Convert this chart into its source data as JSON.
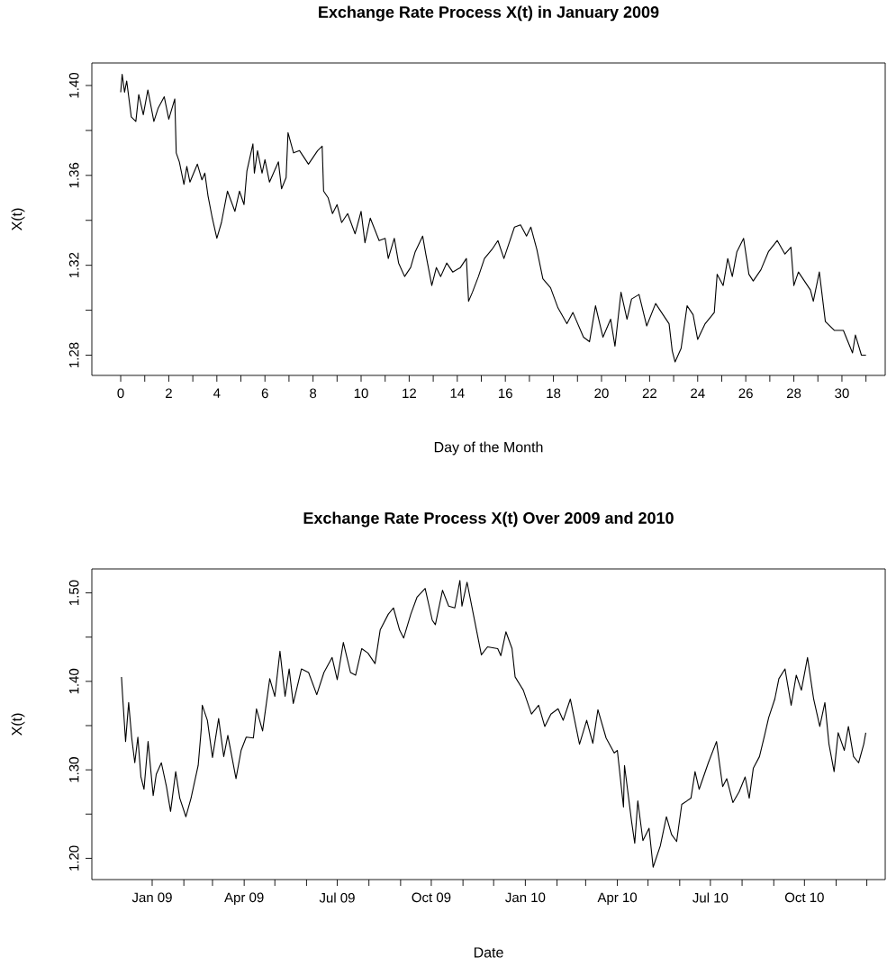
{
  "chart_data": [
    {
      "type": "line",
      "title": "Exchange Rate Process X(t) in January 2009",
      "xlabel": "Day of the Month",
      "ylabel": "X(t)",
      "color": "#000000",
      "x": [
        0,
        0.06,
        0.16,
        0.25,
        0.44,
        0.63,
        0.75,
        0.94,
        1.13,
        1.38,
        1.56,
        1.81,
        2.0,
        2.25,
        2.31,
        2.44,
        2.63,
        2.75,
        2.88,
        3.19,
        3.38,
        3.5,
        3.63,
        3.81,
        4.0,
        4.19,
        4.44,
        4.75,
        4.94,
        5.13,
        5.25,
        5.5,
        5.56,
        5.69,
        5.88,
        6.0,
        6.19,
        6.56,
        6.69,
        6.88,
        6.96,
        7.19,
        7.44,
        7.81,
        8.19,
        8.38,
        8.44,
        8.63,
        8.81,
        9.0,
        9.19,
        9.44,
        9.75,
        10.0,
        10.16,
        10.38,
        10.75,
        11.0,
        11.13,
        11.38,
        11.56,
        11.81,
        12.06,
        12.25,
        12.56,
        12.69,
        12.94,
        13.13,
        13.31,
        13.56,
        13.81,
        14.13,
        14.38,
        14.47,
        14.63,
        14.88,
        15.13,
        15.44,
        15.69,
        15.94,
        16.38,
        16.63,
        16.88,
        17.06,
        17.31,
        17.56,
        17.88,
        18.19,
        18.56,
        18.81,
        19.25,
        19.5,
        19.75,
        20.06,
        20.38,
        20.56,
        20.81,
        21.06,
        21.25,
        21.56,
        21.88,
        22.25,
        22.56,
        22.81,
        22.94,
        23.06,
        23.31,
        23.56,
        23.81,
        24.0,
        24.31,
        24.69,
        24.81,
        25.06,
        25.25,
        25.44,
        25.63,
        25.91,
        26.13,
        26.31,
        26.63,
        26.94,
        27.31,
        27.63,
        27.88,
        28.0,
        28.19,
        28.69,
        28.81,
        29.06,
        29.31,
        29.69,
        30.06,
        30.44,
        30.56,
        30.81,
        31.0
      ],
      "values": [
        1.397,
        1.405,
        1.397,
        1.402,
        1.386,
        1.384,
        1.396,
        1.387,
        1.398,
        1.384,
        1.39,
        1.395,
        1.385,
        1.394,
        1.37,
        1.366,
        1.356,
        1.364,
        1.357,
        1.365,
        1.358,
        1.361,
        1.351,
        1.341,
        1.332,
        1.339,
        1.353,
        1.344,
        1.353,
        1.347,
        1.362,
        1.374,
        1.361,
        1.371,
        1.361,
        1.367,
        1.357,
        1.366,
        1.354,
        1.359,
        1.379,
        1.37,
        1.371,
        1.365,
        1.371,
        1.373,
        1.353,
        1.35,
        1.343,
        1.347,
        1.339,
        1.343,
        1.334,
        1.344,
        1.33,
        1.341,
        1.331,
        1.332,
        1.323,
        1.332,
        1.321,
        1.315,
        1.319,
        1.326,
        1.333,
        1.325,
        1.311,
        1.319,
        1.315,
        1.321,
        1.317,
        1.319,
        1.323,
        1.304,
        1.308,
        1.315,
        1.323,
        1.327,
        1.331,
        1.323,
        1.337,
        1.338,
        1.333,
        1.337,
        1.327,
        1.314,
        1.31,
        1.301,
        1.294,
        1.299,
        1.288,
        1.286,
        1.302,
        1.288,
        1.296,
        1.284,
        1.308,
        1.296,
        1.305,
        1.307,
        1.293,
        1.303,
        1.298,
        1.294,
        1.282,
        1.277,
        1.283,
        1.302,
        1.298,
        1.287,
        1.294,
        1.299,
        1.316,
        1.311,
        1.323,
        1.315,
        1.326,
        1.332,
        1.316,
        1.313,
        1.318,
        1.326,
        1.331,
        1.325,
        1.328,
        1.311,
        1.317,
        1.309,
        1.304,
        1.317,
        1.295,
        1.291,
        1.291,
        1.281,
        1.289,
        1.28,
        1.28
      ],
      "xlim": [
        -1.2,
        31.8
      ],
      "ylim": [
        1.271,
        1.41
      ],
      "xticks": [
        0,
        {
          "value": 1,
          "label": null
        },
        2,
        {
          "value": 3,
          "label": null
        },
        4,
        {
          "value": 5,
          "label": null
        },
        6,
        {
          "value": 7,
          "label": null
        },
        8,
        {
          "value": 9,
          "label": null
        },
        10,
        {
          "value": 11,
          "label": null
        },
        12,
        {
          "value": 13,
          "label": null
        },
        14,
        {
          "value": 15,
          "label": null
        },
        16,
        {
          "value": 17,
          "label": null
        },
        18,
        {
          "value": 19,
          "label": null
        },
        20,
        {
          "value": 21,
          "label": null
        },
        22,
        {
          "value": 23,
          "label": null
        },
        24,
        {
          "value": 25,
          "label": null
        },
        26,
        {
          "value": 27,
          "label": null
        },
        28,
        {
          "value": 29,
          "label": null
        },
        30,
        {
          "value": 31,
          "label": null
        }
      ],
      "yticks": [
        1.28,
        {
          "value": 1.3,
          "label": null
        },
        1.32,
        {
          "value": 1.34,
          "label": null
        },
        1.36,
        {
          "value": 1.38,
          "label": null
        },
        {
          "value": 1.4,
          "label": "1.40"
        }
      ]
    },
    {
      "type": "line",
      "title": "Exchange Rate Process X(t) Over 2009 and 2010",
      "xlabel": "Date",
      "ylabel": "X(t)",
      "color": "#000000",
      "x": [
        "2008-12-02",
        "2008-12-03",
        "2008-12-06",
        "2008-12-09",
        "2008-12-12",
        "2008-12-15",
        "2008-12-18",
        "2008-12-21",
        "2008-12-24",
        "2008-12-28",
        "2009-01-02",
        "2009-01-05",
        "2009-01-10",
        "2009-01-15",
        "2009-01-19",
        "2009-01-24",
        "2009-01-28",
        "2009-02-03",
        "2009-02-08",
        "2009-02-15",
        "2009-02-18",
        "2009-02-19",
        "2009-02-24",
        "2009-03-01",
        "2009-03-07",
        "2009-03-12",
        "2009-03-16",
        "2009-03-24",
        "2009-03-29",
        "2009-04-03",
        "2009-04-10",
        "2009-04-13",
        "2009-04-19",
        "2009-04-26",
        "2009-05-01",
        "2009-05-06",
        "2009-05-11",
        "2009-05-15",
        "2009-05-19",
        "2009-05-27",
        "2009-06-03",
        "2009-06-11",
        "2009-06-18",
        "2009-06-26",
        "2009-07-01",
        "2009-07-07",
        "2009-07-14",
        "2009-07-19",
        "2009-07-25",
        "2009-07-31",
        "2009-08-07",
        "2009-08-12",
        "2009-08-20",
        "2009-08-25",
        "2009-08-31",
        "2009-09-04",
        "2009-09-11",
        "2009-09-17",
        "2009-09-25",
        "2009-10-02",
        "2009-10-05",
        "2009-10-12",
        "2009-10-18",
        "2009-10-24",
        "2009-10-29",
        "2009-10-31",
        "2009-11-05",
        "2009-11-12",
        "2009-11-19",
        "2009-11-25",
        "2009-12-05",
        "2009-12-08",
        "2009-12-13",
        "2009-12-19",
        "2009-12-22",
        "2009-12-30",
        "2010-01-07",
        "2010-01-14",
        "2010-01-20",
        "2010-01-26",
        "2010-02-02",
        "2010-02-07",
        "2010-02-14",
        "2010-02-23",
        "2010-03-02",
        "2010-03-08",
        "2010-03-13",
        "2010-03-21",
        "2010-03-29",
        "2010-04-01",
        "2010-04-07",
        "2010-04-08",
        "2010-04-15",
        "2010-04-18",
        "2010-04-21",
        "2010-04-26",
        "2010-05-02",
        "2010-05-06",
        "2010-05-13",
        "2010-05-19",
        "2010-05-24",
        "2010-05-29",
        "2010-06-03",
        "2010-06-12",
        "2010-06-16",
        "2010-06-20",
        "2010-06-29",
        "2010-07-07",
        "2010-07-13",
        "2010-07-17",
        "2010-07-23",
        "2010-07-29",
        "2010-08-04",
        "2010-08-08",
        "2010-08-12",
        "2010-08-18",
        "2010-08-23",
        "2010-08-27",
        "2010-09-02",
        "2010-09-06",
        "2010-09-12",
        "2010-09-18",
        "2010-09-23",
        "2010-09-28",
        "2010-10-04",
        "2010-10-10",
        "2010-10-16",
        "2010-10-21",
        "2010-10-25",
        "2010-10-30",
        "2010-11-03",
        "2010-11-09",
        "2010-11-13",
        "2010-11-18",
        "2010-11-23",
        "2010-11-28",
        "2010-11-30"
      ],
      "values": [
        1.405,
        1.385,
        1.332,
        1.376,
        1.336,
        1.308,
        1.337,
        1.292,
        1.278,
        1.332,
        1.271,
        1.295,
        1.308,
        1.281,
        1.253,
        1.298,
        1.268,
        1.247,
        1.268,
        1.305,
        1.346,
        1.373,
        1.356,
        1.314,
        1.358,
        1.315,
        1.339,
        1.29,
        1.322,
        1.337,
        1.336,
        1.369,
        1.344,
        1.403,
        1.383,
        1.434,
        1.383,
        1.414,
        1.375,
        1.414,
        1.41,
        1.385,
        1.41,
        1.427,
        1.402,
        1.444,
        1.41,
        1.407,
        1.437,
        1.432,
        1.42,
        1.458,
        1.476,
        1.483,
        1.458,
        1.449,
        1.476,
        1.495,
        1.505,
        1.469,
        1.464,
        1.503,
        1.485,
        1.483,
        1.514,
        1.485,
        1.512,
        1.471,
        1.43,
        1.439,
        1.437,
        1.429,
        1.456,
        1.437,
        1.405,
        1.39,
        1.363,
        1.373,
        1.349,
        1.363,
        1.369,
        1.356,
        1.38,
        1.329,
        1.356,
        1.33,
        1.368,
        1.336,
        1.319,
        1.322,
        1.258,
        1.305,
        1.241,
        1.217,
        1.265,
        1.22,
        1.234,
        1.19,
        1.214,
        1.247,
        1.227,
        1.219,
        1.261,
        1.268,
        1.298,
        1.278,
        1.308,
        1.332,
        1.281,
        1.29,
        1.263,
        1.275,
        1.292,
        1.268,
        1.302,
        1.315,
        1.339,
        1.359,
        1.38,
        1.403,
        1.414,
        1.373,
        1.407,
        1.39,
        1.427,
        1.38,
        1.349,
        1.376,
        1.329,
        1.298,
        1.342,
        1.322,
        1.349,
        1.315,
        1.308,
        1.329,
        1.342
      ],
      "xlim": [
        "2008-11-03",
        "2010-12-19"
      ],
      "ylim": [
        1.176,
        1.527
      ],
      "xticks": [
        {
          "value": "2009-01-01",
          "label": "Jan 09"
        },
        {
          "value": "2009-02-01",
          "label": null
        },
        {
          "value": "2009-03-01",
          "label": null
        },
        {
          "value": "2009-04-01",
          "label": "Apr 09"
        },
        {
          "value": "2009-05-01",
          "label": null
        },
        {
          "value": "2009-06-01",
          "label": null
        },
        {
          "value": "2009-07-01",
          "label": "Jul 09"
        },
        {
          "value": "2009-08-01",
          "label": null
        },
        {
          "value": "2009-09-01",
          "label": null
        },
        {
          "value": "2009-10-01",
          "label": "Oct 09"
        },
        {
          "value": "2009-11-01",
          "label": null
        },
        {
          "value": "2009-12-01",
          "label": null
        },
        {
          "value": "2010-01-01",
          "label": "Jan 10"
        },
        {
          "value": "2010-02-01",
          "label": null
        },
        {
          "value": "2010-03-01",
          "label": null
        },
        {
          "value": "2010-04-01",
          "label": "Apr 10"
        },
        {
          "value": "2010-05-01",
          "label": null
        },
        {
          "value": "2010-06-01",
          "label": null
        },
        {
          "value": "2010-07-01",
          "label": "Jul 10"
        },
        {
          "value": "2010-08-01",
          "label": null
        },
        {
          "value": "2010-09-01",
          "label": null
        },
        {
          "value": "2010-10-01",
          "label": "Oct 10"
        },
        {
          "value": "2010-11-01",
          "label": null
        },
        {
          "value": "2010-12-01",
          "label": null
        }
      ],
      "yticks": [
        {
          "value": 1.2,
          "label": "1.20"
        },
        {
          "value": 1.25,
          "label": null
        },
        {
          "value": 1.3,
          "label": "1.30"
        },
        {
          "value": 1.35,
          "label": null
        },
        {
          "value": 1.4,
          "label": "1.40"
        },
        {
          "value": 1.45,
          "label": null
        },
        {
          "value": 1.5,
          "label": "1.50"
        }
      ]
    }
  ]
}
